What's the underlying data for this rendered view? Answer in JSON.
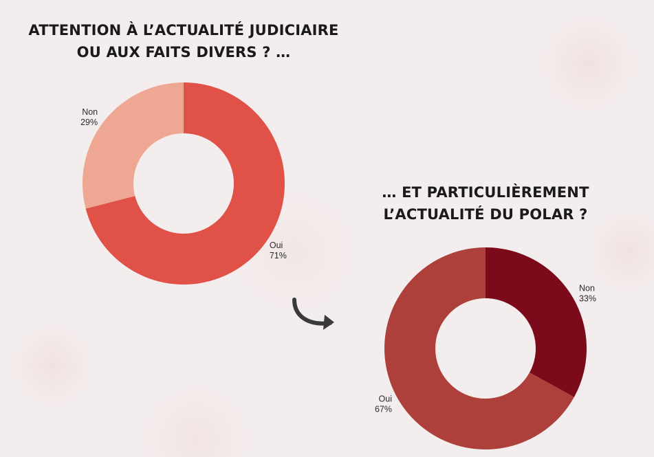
{
  "chart_data": [
    {
      "type": "pie",
      "style": "donut",
      "title_lines": [
        "ATTENTION À L’ACTUALITÉ JUDICIAIRE",
        "OU AUX FAITS DIVERS ? …"
      ],
      "slices": [
        {
          "label": "Oui",
          "value": 71,
          "value_label": "71%",
          "color": "#e05147"
        },
        {
          "label": "Non",
          "value": 29,
          "value_label": "29%",
          "color": "#eea793"
        }
      ]
    },
    {
      "type": "pie",
      "style": "donut",
      "title_lines": [
        "… ET PARTICULIÈREMENT",
        "L’ACTUALITÉ DU POLAR ?"
      ],
      "slices": [
        {
          "label": "Non",
          "value": 33,
          "value_label": "33%",
          "color": "#7b0a1a"
        },
        {
          "label": "Oui",
          "value": 67,
          "value_label": "67%",
          "color": "#ad403b"
        }
      ]
    }
  ],
  "colors": {
    "background": "#f4eded",
    "title": "#1a1a1a",
    "arrow": "#3a3a3a",
    "donut_hole": "#f4eded"
  },
  "decorations": {
    "arrow_icon": "curved-arrow-icon"
  }
}
